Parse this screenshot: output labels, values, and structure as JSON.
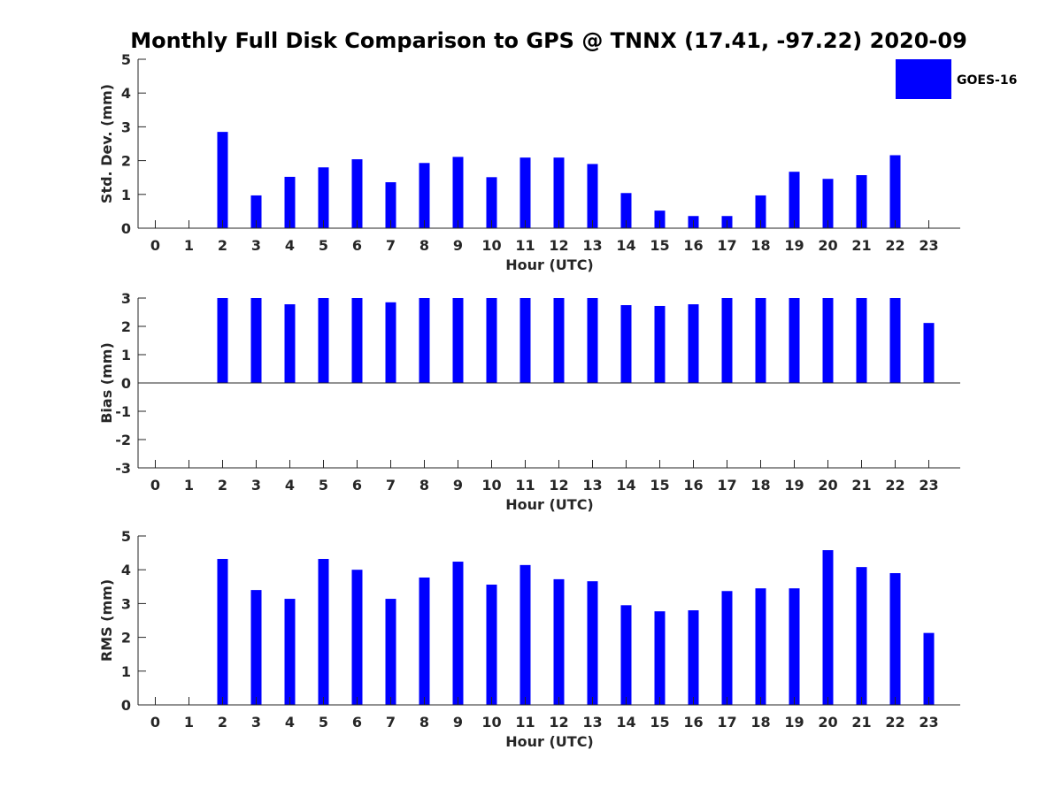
{
  "title": "Monthly Full Disk Comparison to GPS @ TNNX (17.41, -97.22) 2020-09",
  "colors": {
    "bar": "#0000ff",
    "axis": "#262626"
  },
  "legend": {
    "label": "GOES-16",
    "placement": "top-right"
  },
  "chart_data": [
    {
      "type": "bar",
      "xlabel": "Hour (UTC)",
      "ylabel": "Std. Dev. (mm)",
      "ylim": [
        0,
        5
      ],
      "yticks": [
        "0",
        "1",
        "2",
        "3",
        "4",
        "5"
      ],
      "categories": [
        "0",
        "1",
        "2",
        "3",
        "4",
        "5",
        "6",
        "7",
        "8",
        "9",
        "10",
        "11",
        "12",
        "13",
        "14",
        "15",
        "16",
        "17",
        "18",
        "19",
        "20",
        "21",
        "22",
        "23"
      ],
      "series": [
        {
          "name": "GOES-16",
          "values": [
            null,
            null,
            2.85,
            0.97,
            1.52,
            1.8,
            2.04,
            1.36,
            1.93,
            2.11,
            1.51,
            2.09,
            2.09,
            1.9,
            1.04,
            0.52,
            0.36,
            0.36,
            0.97,
            1.67,
            1.46,
            1.57,
            2.16,
            null
          ]
        }
      ]
    },
    {
      "type": "bar",
      "xlabel": "Hour (UTC)",
      "ylabel": "Bias (mm)",
      "ylim": [
        -3,
        3
      ],
      "yticks": [
        "-3",
        "-2",
        "-1",
        "0",
        "1",
        "2",
        "3"
      ],
      "categories": [
        "0",
        "1",
        "2",
        "3",
        "4",
        "5",
        "6",
        "7",
        "8",
        "9",
        "10",
        "11",
        "12",
        "13",
        "14",
        "15",
        "16",
        "17",
        "18",
        "19",
        "20",
        "21",
        "22",
        "23"
      ],
      "series": [
        {
          "name": "GOES-16",
          "values": [
            null,
            null,
            3.0,
            3.0,
            2.78,
            3.0,
            3.0,
            2.85,
            3.0,
            3.0,
            3.0,
            3.0,
            3.0,
            3.0,
            2.75,
            2.72,
            2.78,
            3.0,
            3.0,
            3.0,
            3.0,
            3.0,
            3.0,
            2.12
          ]
        }
      ]
    },
    {
      "type": "bar",
      "xlabel": "Hour (UTC)",
      "ylabel": "RMS (mm)",
      "ylim": [
        0,
        5
      ],
      "yticks": [
        "0",
        "1",
        "2",
        "3",
        "4",
        "5"
      ],
      "categories": [
        "0",
        "1",
        "2",
        "3",
        "4",
        "5",
        "6",
        "7",
        "8",
        "9",
        "10",
        "11",
        "12",
        "13",
        "14",
        "15",
        "16",
        "17",
        "18",
        "19",
        "20",
        "21",
        "22",
        "23"
      ],
      "series": [
        {
          "name": "GOES-16",
          "values": [
            null,
            null,
            4.32,
            3.4,
            3.14,
            4.32,
            4.0,
            3.14,
            3.77,
            4.24,
            3.56,
            4.14,
            3.72,
            3.66,
            2.95,
            2.77,
            2.8,
            3.37,
            3.45,
            3.45,
            4.58,
            4.08,
            3.9,
            2.13
          ]
        }
      ]
    }
  ]
}
